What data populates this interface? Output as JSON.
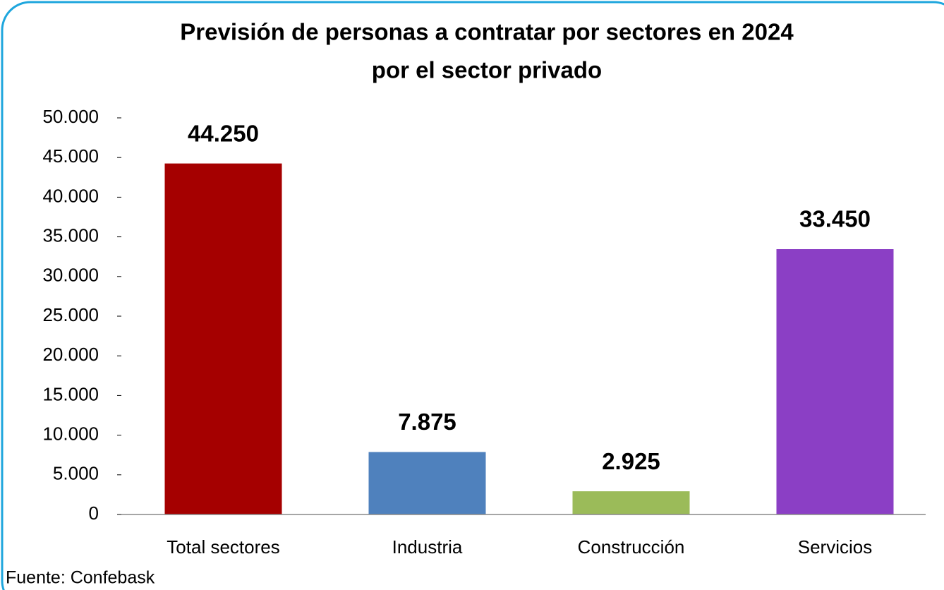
{
  "chart_data": {
    "type": "bar",
    "title": [
      "Previsión de personas a contratar por sectores en 2024",
      "por el sector privado"
    ],
    "categories": [
      "Total sectores",
      "Industria",
      "Construcción",
      "Servicios"
    ],
    "values": [
      44250,
      7875,
      2925,
      33450
    ],
    "value_labels": [
      "44.250",
      "7.875",
      "2.925",
      "33.450"
    ],
    "colors": [
      "#a50000",
      "#4f81bd",
      "#9bbb59",
      "#8b3fc5"
    ],
    "ylim": [
      0,
      50000
    ],
    "yticks": [
      0,
      {
        "value": 5000,
        "label": "5.000"
      },
      {
        "value": 10000,
        "label": "10.000"
      },
      {
        "value": 15000,
        "label": "15.000"
      },
      {
        "value": 20000,
        "label": "20.000"
      },
      {
        "value": 25000,
        "label": "25.000"
      },
      {
        "value": 30000,
        "label": "30.000"
      },
      {
        "value": 35000,
        "label": "35.000"
      },
      {
        "value": 40000,
        "label": "40.000"
      },
      {
        "value": 45000,
        "label": "45.000"
      },
      {
        "value": 50000,
        "label": "50.000"
      }
    ],
    "grid": false,
    "source": "Fuente: Confebask"
  }
}
